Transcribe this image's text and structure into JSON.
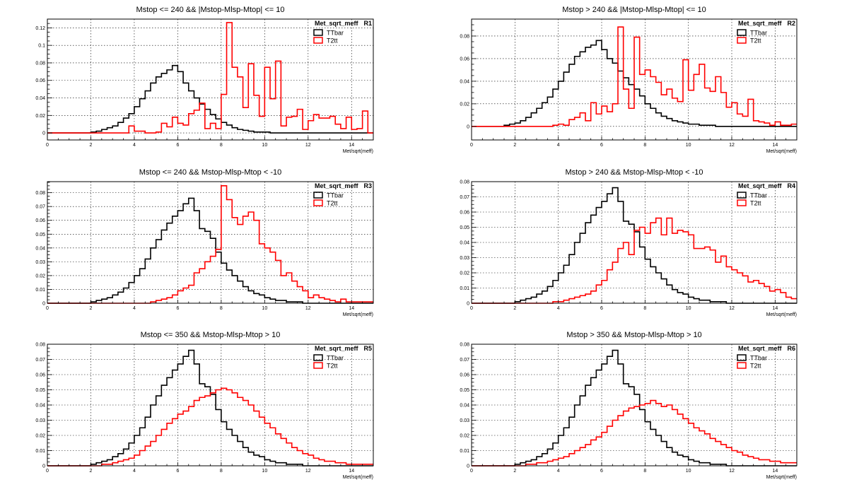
{
  "chart_data": [
    {
      "type": "line",
      "title": "Mstop <= 240 && |Mstop-Mlsp-Mtop| <= 10",
      "stat_label": "Met_sqrt_meff",
      "region": "R1",
      "xlabel": "Met/sqrt(meff)",
      "xlim": [
        0,
        15
      ],
      "ylim": [
        -0.008,
        0.13
      ],
      "x_ticks": [
        0,
        2,
        4,
        6,
        8,
        10,
        12,
        14
      ],
      "y_ticks": [
        0,
        0.02,
        0.04,
        0.06,
        0.08,
        0.1,
        0.12
      ],
      "y_tick_labels": [
        "0",
        "0.02",
        "0.04",
        "0.06",
        "0.08",
        "0.1",
        "0.12"
      ],
      "grid": true,
      "legend": "top-right",
      "bin_edges_start": 0,
      "bin_width": 0.25,
      "series": [
        {
          "name": "TTbar",
          "color": "#000000",
          "values": [
            0,
            0,
            0,
            0,
            0,
            0,
            0,
            0,
            0.001,
            0.002,
            0.004,
            0.006,
            0.008,
            0.012,
            0.017,
            0.022,
            0.03,
            0.039,
            0.048,
            0.057,
            0.064,
            0.068,
            0.072,
            0.077,
            0.07,
            0.057,
            0.048,
            0.04,
            0.033,
            0.027,
            0.021,
            0.016,
            0.012,
            0.009,
            0.006,
            0.004,
            0.003,
            0.002,
            0.001,
            0.001,
            0.001,
            0,
            0,
            0,
            0,
            0,
            0,
            0,
            0,
            0,
            0,
            0,
            0,
            0,
            0,
            0,
            0,
            0,
            0,
            0
          ]
        },
        {
          "name": "T2tt",
          "color": "#ff0000",
          "values": [
            0,
            0,
            0,
            0,
            0,
            0,
            0,
            0,
            0,
            0,
            0,
            0,
            0,
            0,
            0,
            0.008,
            0.002,
            0.002,
            0,
            0,
            0.001,
            0.011,
            0.007,
            0.018,
            0.011,
            0.009,
            0.022,
            0.026,
            0.034,
            0.005,
            0.011,
            0.005,
            0.044,
            0.126,
            0.075,
            0.064,
            0.029,
            0.079,
            0.043,
            0.019,
            0.075,
            0.039,
            0.082,
            0.008,
            0.018,
            0.019,
            0.027,
            0.004,
            0.014,
            0.021,
            0.017,
            0.017,
            0.019,
            0.01,
            0.005,
            0.018,
            0.004,
            0.005,
            0.025,
            0.0
          ]
        }
      ]
    },
    {
      "type": "line",
      "title": "Mstop > 240 && |Mstop-Mlsp-Mtop| <= 10",
      "stat_label": "Met_sqrt_meff",
      "region": "R2",
      "xlabel": "Met/sqrt(meff)",
      "xlim": [
        0,
        15
      ],
      "ylim": [
        -0.012,
        0.095
      ],
      "x_ticks": [
        0,
        2,
        4,
        6,
        8,
        10,
        12,
        14
      ],
      "y_ticks": [
        0,
        0.02,
        0.04,
        0.06,
        0.08
      ],
      "y_tick_labels": [
        "0",
        "0.02",
        "0.04",
        "0.06",
        "0.08"
      ],
      "grid": true,
      "legend": "top-right",
      "bin_edges_start": 0,
      "bin_width": 0.25,
      "series": [
        {
          "name": "TTbar",
          "color": "#000000",
          "values": [
            0,
            0,
            0,
            0,
            0,
            0,
            0.001,
            0.002,
            0.003,
            0.005,
            0.008,
            0.012,
            0.016,
            0.021,
            0.026,
            0.033,
            0.04,
            0.048,
            0.055,
            0.062,
            0.066,
            0.07,
            0.072,
            0.076,
            0.068,
            0.06,
            0.056,
            0.049,
            0.043,
            0.037,
            0.033,
            0.027,
            0.02,
            0.016,
            0.012,
            0.009,
            0.007,
            0.005,
            0.004,
            0.003,
            0.002,
            0.002,
            0.001,
            0.001,
            0.001,
            0,
            0,
            0,
            0,
            0,
            0,
            0,
            0,
            0,
            0,
            0,
            0,
            0,
            0,
            0
          ]
        },
        {
          "name": "T2tt",
          "color": "#ff0000",
          "values": [
            0,
            0,
            0,
            0,
            0,
            0,
            0,
            0,
            0,
            0,
            0,
            0,
            0,
            0,
            0,
            0.001,
            0.002,
            0.001,
            0.006,
            0.008,
            0.012,
            0.005,
            0.021,
            0.011,
            0.018,
            0.013,
            0.02,
            0.088,
            0.033,
            0.016,
            0.079,
            0.046,
            0.05,
            0.044,
            0.039,
            0.028,
            0.033,
            0.025,
            0.022,
            0.059,
            0.032,
            0.046,
            0.055,
            0.034,
            0.031,
            0.044,
            0.03,
            0.017,
            0.021,
            0.011,
            0.009,
            0.024,
            0.005,
            0.004,
            0.003,
            0.001,
            0.004,
            0.001,
            0.001,
            0.002
          ]
        }
      ]
    },
    {
      "type": "line",
      "title": "Mstop <= 240 && Mstop-Mlsp-Mtop < -10",
      "stat_label": "Met_sqrt_meff",
      "region": "R3",
      "xlabel": "Met/sqrt(meff)",
      "xlim": [
        0,
        15
      ],
      "ylim": [
        0,
        0.088
      ],
      "x_ticks": [
        0,
        2,
        4,
        6,
        8,
        10,
        12,
        14
      ],
      "y_ticks": [
        0,
        0.01,
        0.02,
        0.03,
        0.04,
        0.05,
        0.06,
        0.07,
        0.08
      ],
      "y_tick_labels": [
        "0",
        "0.01",
        "0.02",
        "0.03",
        "0.04",
        "0.05",
        "0.06",
        "0.07",
        "0.08"
      ],
      "grid": true,
      "legend": "top-right",
      "bin_edges_start": 0,
      "bin_width": 0.25,
      "series": [
        {
          "name": "TTbar",
          "color": "#000000",
          "values": [
            0,
            0,
            0,
            0,
            0,
            0,
            0,
            0,
            0.001,
            0.002,
            0.003,
            0.004,
            0.006,
            0.008,
            0.011,
            0.015,
            0.02,
            0.025,
            0.032,
            0.04,
            0.046,
            0.053,
            0.058,
            0.063,
            0.067,
            0.072,
            0.076,
            0.067,
            0.054,
            0.052,
            0.047,
            0.037,
            0.029,
            0.024,
            0.02,
            0.016,
            0.012,
            0.009,
            0.007,
            0.006,
            0.004,
            0.003,
            0.002,
            0.002,
            0.001,
            0.001,
            0.001,
            0,
            0,
            0,
            0,
            0,
            0,
            0,
            0,
            0,
            0,
            0,
            0,
            0
          ]
        },
        {
          "name": "T2tt",
          "color": "#ff0000",
          "values": [
            0,
            0,
            0,
            0,
            0,
            0,
            0,
            0,
            0,
            0,
            0,
            0,
            0,
            0,
            0,
            0,
            0,
            0,
            0,
            0.001,
            0.002,
            0.003,
            0.004,
            0.006,
            0.009,
            0.011,
            0.013,
            0.022,
            0.025,
            0.03,
            0.034,
            0.039,
            0.085,
            0.075,
            0.062,
            0.057,
            0.063,
            0.066,
            0.06,
            0.043,
            0.04,
            0.037,
            0.031,
            0.02,
            0.022,
            0.016,
            0.012,
            0.009,
            0.004,
            0.006,
            0.004,
            0.003,
            0.002,
            0.001,
            0.003,
            0.001,
            0.001,
            0.001,
            0.001,
            0.001
          ]
        }
      ]
    },
    {
      "type": "line",
      "title": "Mstop > 240 && Mstop-Mlsp-Mtop < -10",
      "stat_label": "Met_sqrt_meff",
      "region": "R4",
      "xlabel": "Met/sqrt(meff)",
      "xlim": [
        0,
        15
      ],
      "ylim": [
        0,
        0.08
      ],
      "x_ticks": [
        0,
        2,
        4,
        6,
        8,
        10,
        12,
        14
      ],
      "y_ticks": [
        0,
        0.01,
        0.02,
        0.03,
        0.04,
        0.05,
        0.06,
        0.07,
        0.08
      ],
      "y_tick_labels": [
        "0",
        "0.01",
        "0.02",
        "0.03",
        "0.04",
        "0.05",
        "0.06",
        "0.07",
        "0.08"
      ],
      "grid": true,
      "legend": "top-right",
      "bin_edges_start": 0,
      "bin_width": 0.25,
      "series": [
        {
          "name": "TTbar",
          "color": "#000000",
          "values": [
            0,
            0,
            0,
            0,
            0,
            0,
            0,
            0,
            0.001,
            0.002,
            0.003,
            0.004,
            0.006,
            0.008,
            0.011,
            0.015,
            0.02,
            0.025,
            0.032,
            0.04,
            0.046,
            0.053,
            0.058,
            0.063,
            0.067,
            0.072,
            0.076,
            0.067,
            0.054,
            0.052,
            0.047,
            0.037,
            0.029,
            0.024,
            0.02,
            0.016,
            0.012,
            0.009,
            0.007,
            0.006,
            0.004,
            0.003,
            0.002,
            0.002,
            0.001,
            0.001,
            0.001,
            0,
            0,
            0,
            0,
            0,
            0,
            0,
            0,
            0,
            0,
            0,
            0,
            0
          ]
        },
        {
          "name": "T2tt",
          "color": "#ff0000",
          "values": [
            0,
            0,
            0,
            0,
            0,
            0,
            0,
            0,
            0,
            0,
            0,
            0,
            0,
            0,
            0,
            0.001,
            0.001,
            0.002,
            0.003,
            0.004,
            0.005,
            0.006,
            0.008,
            0.012,
            0.015,
            0.022,
            0.027,
            0.036,
            0.04,
            0.032,
            0.048,
            0.05,
            0.046,
            0.053,
            0.056,
            0.045,
            0.056,
            0.046,
            0.048,
            0.047,
            0.045,
            0.036,
            0.036,
            0.037,
            0.035,
            0.027,
            0.031,
            0.024,
            0.022,
            0.02,
            0.018,
            0.014,
            0.015,
            0.013,
            0.011,
            0.008,
            0.009,
            0.007,
            0.004,
            0.003
          ]
        }
      ]
    },
    {
      "type": "line",
      "title": "Mstop <= 350 && Mstop-Mlsp-Mtop > 10",
      "stat_label": "Met_sqrt_meff",
      "region": "R5",
      "xlabel": "Met/sqrt(meff)",
      "xlim": [
        0,
        15
      ],
      "ylim": [
        0,
        0.08
      ],
      "x_ticks": [
        0,
        2,
        4,
        6,
        8,
        10,
        12,
        14
      ],
      "y_ticks": [
        0,
        0.01,
        0.02,
        0.03,
        0.04,
        0.05,
        0.06,
        0.07,
        0.08
      ],
      "y_tick_labels": [
        "0",
        "0.01",
        "0.02",
        "0.03",
        "0.04",
        "0.05",
        "0.06",
        "0.07",
        "0.08"
      ],
      "grid": true,
      "legend": "top-right",
      "bin_edges_start": 0,
      "bin_width": 0.25,
      "series": [
        {
          "name": "TTbar",
          "color": "#000000",
          "values": [
            0,
            0,
            0,
            0,
            0,
            0,
            0,
            0,
            0.001,
            0.002,
            0.003,
            0.004,
            0.006,
            0.008,
            0.011,
            0.015,
            0.02,
            0.025,
            0.032,
            0.04,
            0.046,
            0.053,
            0.058,
            0.063,
            0.067,
            0.072,
            0.076,
            0.067,
            0.054,
            0.052,
            0.047,
            0.037,
            0.029,
            0.024,
            0.02,
            0.016,
            0.012,
            0.009,
            0.007,
            0.006,
            0.004,
            0.003,
            0.002,
            0.002,
            0.001,
            0.001,
            0.001,
            0,
            0,
            0,
            0,
            0,
            0,
            0,
            0,
            0,
            0,
            0,
            0,
            0
          ]
        },
        {
          "name": "T2tt",
          "color": "#ff0000",
          "values": [
            0,
            0,
            0,
            0,
            0,
            0,
            0,
            0,
            0,
            0,
            0.001,
            0.001,
            0.002,
            0.003,
            0.004,
            0.005,
            0.007,
            0.01,
            0.013,
            0.016,
            0.02,
            0.024,
            0.028,
            0.031,
            0.034,
            0.036,
            0.039,
            0.043,
            0.045,
            0.046,
            0.048,
            0.05,
            0.051,
            0.05,
            0.048,
            0.045,
            0.043,
            0.04,
            0.036,
            0.032,
            0.028,
            0.025,
            0.021,
            0.018,
            0.015,
            0.012,
            0.01,
            0.008,
            0.007,
            0.005,
            0.004,
            0.003,
            0.003,
            0.002,
            0.002,
            0.001,
            0.001,
            0.001,
            0.001,
            0.001
          ]
        }
      ]
    },
    {
      "type": "line",
      "title": "Mstop > 350 && Mstop-Mlsp-Mtop > 10",
      "stat_label": "Met_sqrt_meff",
      "region": "R6",
      "xlabel": "Met/sqrt(meff)",
      "xlim": [
        0,
        15
      ],
      "ylim": [
        0,
        0.08
      ],
      "x_ticks": [
        0,
        2,
        4,
        6,
        8,
        10,
        12,
        14
      ],
      "y_ticks": [
        0,
        0.01,
        0.02,
        0.03,
        0.04,
        0.05,
        0.06,
        0.07,
        0.08
      ],
      "y_tick_labels": [
        "0",
        "0.01",
        "0.02",
        "0.03",
        "0.04",
        "0.05",
        "0.06",
        "0.07",
        "0.08"
      ],
      "grid": true,
      "legend": "top-right",
      "bin_edges_start": 0,
      "bin_width": 0.25,
      "series": [
        {
          "name": "TTbar",
          "color": "#000000",
          "values": [
            0,
            0,
            0,
            0,
            0,
            0,
            0,
            0,
            0.001,
            0.002,
            0.003,
            0.004,
            0.006,
            0.008,
            0.011,
            0.015,
            0.02,
            0.025,
            0.032,
            0.04,
            0.046,
            0.053,
            0.058,
            0.063,
            0.067,
            0.072,
            0.076,
            0.067,
            0.054,
            0.052,
            0.047,
            0.037,
            0.029,
            0.024,
            0.02,
            0.016,
            0.012,
            0.009,
            0.007,
            0.006,
            0.004,
            0.003,
            0.002,
            0.002,
            0.001,
            0.001,
            0.001,
            0,
            0,
            0,
            0,
            0,
            0,
            0,
            0,
            0,
            0,
            0,
            0,
            0
          ]
        },
        {
          "name": "T2tt",
          "color": "#ff0000",
          "values": [
            0,
            0,
            0,
            0,
            0,
            0,
            0,
            0,
            0,
            0,
            0.001,
            0.001,
            0.002,
            0.002,
            0.003,
            0.004,
            0.005,
            0.006,
            0.008,
            0.01,
            0.012,
            0.014,
            0.017,
            0.019,
            0.022,
            0.026,
            0.03,
            0.033,
            0.036,
            0.038,
            0.039,
            0.04,
            0.041,
            0.043,
            0.041,
            0.039,
            0.04,
            0.037,
            0.034,
            0.031,
            0.028,
            0.025,
            0.023,
            0.021,
            0.018,
            0.016,
            0.014,
            0.012,
            0.01,
            0.009,
            0.007,
            0.006,
            0.005,
            0.004,
            0.004,
            0.003,
            0.003,
            0.002,
            0.002,
            0.002
          ]
        }
      ]
    }
  ]
}
